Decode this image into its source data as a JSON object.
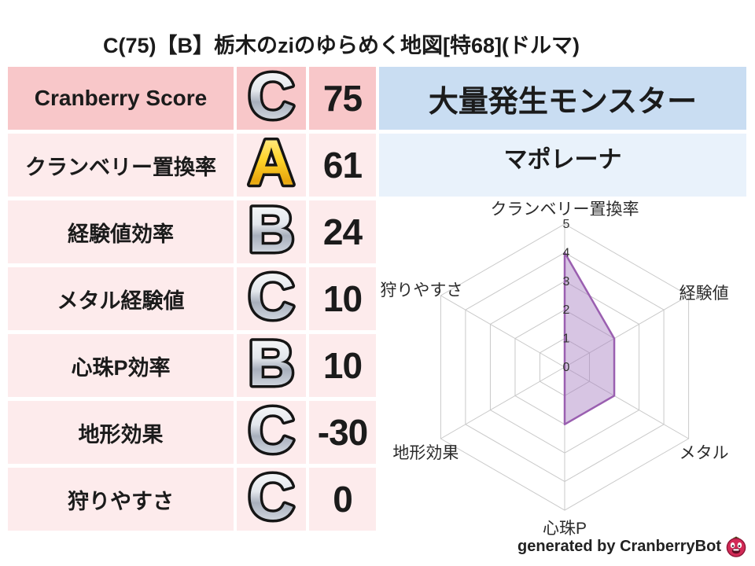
{
  "title": "C(75)【B】栃木のziのゆらめく地図[特68](ドルマ)",
  "score_table": {
    "rows": [
      {
        "label": "Cranberry Score",
        "grade": "C",
        "grade_style": "silver",
        "value": "75"
      },
      {
        "label": "クランベリー置換率",
        "grade": "A",
        "grade_style": "gold",
        "value": "61"
      },
      {
        "label": "経験値効率",
        "grade": "B",
        "grade_style": "silver",
        "value": "24"
      },
      {
        "label": "メタル経験値",
        "grade": "C",
        "grade_style": "silver",
        "value": "10"
      },
      {
        "label": "心珠P効率",
        "grade": "B",
        "grade_style": "silver",
        "value": "10"
      },
      {
        "label": "地形効果",
        "grade": "C",
        "grade_style": "silver",
        "value": "-30"
      },
      {
        "label": "狩りやすさ",
        "grade": "C",
        "grade_style": "silver",
        "value": "0"
      }
    ]
  },
  "monster_panel": {
    "header": "大量発生モンスター",
    "name": "マポレーナ"
  },
  "chart_data": {
    "type": "radar",
    "categories": [
      "クランベリー置換率",
      "経験値",
      "メタル",
      "心珠P",
      "地形効果",
      "狩りやすさ"
    ],
    "values": [
      4,
      2,
      2,
      2,
      0,
      0
    ],
    "ticks": [
      "0",
      "1",
      "2",
      "3",
      "4",
      "5"
    ],
    "range": [
      0,
      5
    ],
    "grid": true,
    "legend": false,
    "fill_color": "rgba(166,127,192,0.45)",
    "line_color": "#9a5fb0",
    "grid_color": "#c9c9c9",
    "tick_color": "#333333",
    "label_color": "#2b2b2b"
  },
  "footer": {
    "credit": "generated by CranberryBot",
    "icon": "cranberry-mascot-icon"
  },
  "colors": {
    "header_pink": "#f8c7c9",
    "row_pink": "#fdebec",
    "header_blue": "#c9ddf2",
    "row_blue": "#e9f2fb",
    "text": "#1b1b1b",
    "grade_silver": "#c3c9d4",
    "grade_gold": "#ffd42a"
  }
}
